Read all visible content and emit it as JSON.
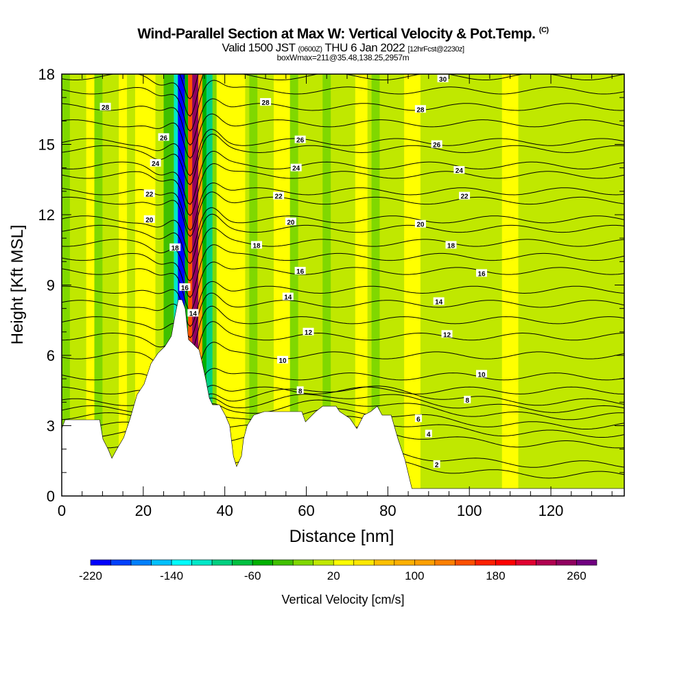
{
  "header": {
    "title": "Wind-Parallel Section at Max W: Vertical Velocity & Pot.Temp.",
    "copyright": "(C)",
    "valid_prefix": "Valid 1500 JST",
    "valid_utc": "(0600Z)",
    "valid_date": "THU 6 Jan 2022",
    "forecast": "[12hrFcst@2230z]",
    "box_info": "boxWmax=211@35.48,138.25,2957m"
  },
  "chart_data": {
    "type": "heatmap",
    "title": "Wind-Parallel Section at Max W: Vertical Velocity & Pot.Temp.",
    "xlabel": "Distance [nm]",
    "ylabel": "Height [Kft MSL]",
    "xlim": [
      0,
      138
    ],
    "ylim": [
      0,
      18
    ],
    "xticks": [
      0,
      20,
      40,
      60,
      80,
      100,
      120
    ],
    "xtick_labels": [
      "0",
      "20",
      "40",
      "60",
      "80",
      "100",
      "120"
    ],
    "yticks": [
      0,
      3,
      6,
      9,
      12,
      15,
      18
    ],
    "ytick_labels": [
      "0",
      "3",
      "6",
      "9",
      "12",
      "15",
      "18"
    ],
    "colorbar": {
      "label": "Vertical Velocity [cm/s]",
      "min": -220,
      "max": 280,
      "step": 20,
      "tick_labels": [
        "-220",
        "-140",
        "-60",
        "20",
        "100",
        "180",
        "260"
      ],
      "tick_values": [
        -220,
        -140,
        -60,
        20,
        100,
        180,
        260
      ],
      "colors": [
        "#0000ff",
        "#0040ff",
        "#0080ff",
        "#00c0ff",
        "#00ffff",
        "#00e8c8",
        "#00d080",
        "#00c040",
        "#00b000",
        "#40c000",
        "#80d800",
        "#c0e800",
        "#ffff00",
        "#ffe800",
        "#ffc000",
        "#ffb000",
        "#ffa000",
        "#ff8000",
        "#ff5000",
        "#ff2000",
        "#ff0000",
        "#e00030",
        "#b00050",
        "#900060",
        "#700080"
      ]
    },
    "background_w": 10,
    "shaded_bands": [
      {
        "x0": 0,
        "x1": 2,
        "w": -10
      },
      {
        "x0": 6,
        "x1": 8,
        "w": 20
      },
      {
        "x0": 8,
        "x1": 10,
        "w": -10
      },
      {
        "x0": 14,
        "x1": 16,
        "w": 30
      },
      {
        "x0": 18,
        "x1": 23,
        "w": 30
      },
      {
        "x0": 23,
        "x1": 25,
        "w": 10
      },
      {
        "x0": 25,
        "x1": 27.5,
        "w": -30
      },
      {
        "x0": 27.5,
        "x1": 28.5,
        "w": -110
      },
      {
        "x0": 28.5,
        "x1": 30.2,
        "w": -210
      },
      {
        "x0": 30.2,
        "x1": 31,
        "w": -50
      },
      {
        "x0": 31,
        "x1": 32,
        "w": 150
      },
      {
        "x0": 32,
        "x1": 33.5,
        "w": 250
      },
      {
        "x0": 33.5,
        "x1": 34.5,
        "w": 110
      },
      {
        "x0": 34.5,
        "x1": 35.5,
        "w": -50
      },
      {
        "x0": 35.5,
        "x1": 37,
        "w": -90
      },
      {
        "x0": 37,
        "x1": 38,
        "w": -10
      },
      {
        "x0": 38,
        "x1": 45,
        "w": 30
      },
      {
        "x0": 46,
        "x1": 48,
        "w": -10
      },
      {
        "x0": 52,
        "x1": 56,
        "w": 30
      },
      {
        "x0": 56,
        "x1": 58,
        "w": -10
      },
      {
        "x0": 64,
        "x1": 66,
        "w": -10
      },
      {
        "x0": 72,
        "x1": 75,
        "w": 30
      },
      {
        "x0": 76,
        "x1": 78,
        "w": -10
      },
      {
        "x0": 84,
        "x1": 88,
        "w": 30
      },
      {
        "x0": 108,
        "x1": 112,
        "w": 30
      }
    ],
    "terrain": [
      [
        0,
        2.87
      ],
      [
        0.8,
        3.25
      ],
      [
        9.3,
        3.25
      ],
      [
        10.1,
        2.43
      ],
      [
        11.4,
        1.99
      ],
      [
        12.3,
        1.61
      ],
      [
        13.5,
        1.99
      ],
      [
        15.2,
        2.49
      ],
      [
        16.8,
        3.31
      ],
      [
        18.5,
        4.33
      ],
      [
        20.2,
        4.77
      ],
      [
        21.9,
        5.65
      ],
      [
        23.6,
        6.09
      ],
      [
        25.3,
        6.38
      ],
      [
        26.9,
        6.82
      ],
      [
        27.8,
        7.7
      ],
      [
        28.6,
        8.37
      ],
      [
        29.5,
        8.37
      ],
      [
        30.3,
        7.99
      ],
      [
        31.1,
        6.67
      ],
      [
        32.0,
        6.53
      ],
      [
        33.7,
        6.23
      ],
      [
        34.5,
        5.65
      ],
      [
        35.4,
        4.92
      ],
      [
        36.2,
        4.18
      ],
      [
        37.0,
        3.89
      ],
      [
        38.7,
        3.89
      ],
      [
        40.1,
        3.45
      ],
      [
        41.2,
        3.01
      ],
      [
        42.1,
        1.7
      ],
      [
        42.9,
        1.26
      ],
      [
        44.1,
        1.7
      ],
      [
        44.6,
        2.43
      ],
      [
        45.5,
        3.01
      ],
      [
        47.1,
        3.45
      ],
      [
        49.7,
        3.6
      ],
      [
        58.9,
        3.6
      ],
      [
        59.8,
        3.16
      ],
      [
        62.3,
        3.6
      ],
      [
        64.0,
        3.83
      ],
      [
        67.3,
        3.83
      ],
      [
        68.2,
        3.6
      ],
      [
        70.7,
        3.31
      ],
      [
        72.4,
        2.87
      ],
      [
        74.1,
        3.45
      ],
      [
        75.8,
        3.6
      ],
      [
        77.4,
        3.83
      ],
      [
        78.6,
        3.45
      ],
      [
        80.8,
        3.45
      ],
      [
        82.5,
        2.43
      ],
      [
        84.2,
        1.55
      ],
      [
        85.9,
        0.32
      ],
      [
        138,
        0.32
      ]
    ],
    "isentrope_heights_far_field": {
      "theta": [
        1,
        2,
        3,
        4,
        5,
        6,
        7,
        8,
        9,
        10,
        11,
        12,
        13,
        14,
        15,
        16,
        17,
        18,
        19,
        20,
        21,
        22,
        23,
        24,
        25,
        26,
        27,
        28,
        29,
        30,
        31
      ],
      "height": [
        0.9,
        1.35,
        2.2,
        2.65,
        3.0,
        3.4,
        3.7,
        4.0,
        4.5,
        5.1,
        6.0,
        6.8,
        7.5,
        8.2,
        8.8,
        9.6,
        10.2,
        10.8,
        11.4,
        11.8,
        12.6,
        13.0,
        13.7,
        14.1,
        14.8,
        15.1,
        15.9,
        16.6,
        17.3,
        17.9,
        18.5
      ]
    },
    "contour_labels": [
      {
        "text": "28",
        "x": 10.7,
        "h": 16.6
      },
      {
        "text": "26",
        "x": 25.0,
        "h": 15.3
      },
      {
        "text": "24",
        "x": 23.0,
        "h": 14.2
      },
      {
        "text": "22",
        "x": 21.5,
        "h": 12.9
      },
      {
        "text": "20",
        "x": 21.5,
        "h": 11.8
      },
      {
        "text": "18",
        "x": 27.8,
        "h": 10.6
      },
      {
        "text": "16",
        "x": 30.2,
        "h": 8.9
      },
      {
        "text": "14",
        "x": 32.2,
        "h": 7.8
      },
      {
        "text": "28",
        "x": 50.0,
        "h": 16.8
      },
      {
        "text": "26",
        "x": 58.5,
        "h": 15.2
      },
      {
        "text": "24",
        "x": 57.5,
        "h": 14.0
      },
      {
        "text": "22",
        "x": 53.2,
        "h": 12.8
      },
      {
        "text": "20",
        "x": 56.2,
        "h": 11.7
      },
      {
        "text": "18",
        "x": 47.8,
        "h": 10.7
      },
      {
        "text": "16",
        "x": 58.5,
        "h": 9.6
      },
      {
        "text": "14",
        "x": 55.5,
        "h": 8.5
      },
      {
        "text": "12",
        "x": 60.5,
        "h": 7.0
      },
      {
        "text": "10",
        "x": 54.2,
        "h": 5.8
      },
      {
        "text": "8",
        "x": 58.5,
        "h": 4.5
      },
      {
        "text": "30",
        "x": 93.5,
        "h": 17.8
      },
      {
        "text": "28",
        "x": 88.0,
        "h": 16.5
      },
      {
        "text": "26",
        "x": 92.0,
        "h": 15.0
      },
      {
        "text": "24",
        "x": 97.5,
        "h": 13.9
      },
      {
        "text": "22",
        "x": 98.8,
        "h": 12.8
      },
      {
        "text": "20",
        "x": 88.0,
        "h": 11.6
      },
      {
        "text": "18",
        "x": 95.5,
        "h": 10.7
      },
      {
        "text": "16",
        "x": 103.0,
        "h": 9.5
      },
      {
        "text": "14",
        "x": 92.5,
        "h": 8.3
      },
      {
        "text": "12",
        "x": 94.5,
        "h": 6.9
      },
      {
        "text": "10",
        "x": 103.0,
        "h": 5.2
      },
      {
        "text": "8",
        "x": 99.5,
        "h": 4.1
      },
      {
        "text": "6",
        "x": 87.5,
        "h": 3.3
      },
      {
        "text": "4",
        "x": 90.0,
        "h": 2.65
      },
      {
        "text": "2",
        "x": 92.0,
        "h": 1.35
      }
    ]
  }
}
